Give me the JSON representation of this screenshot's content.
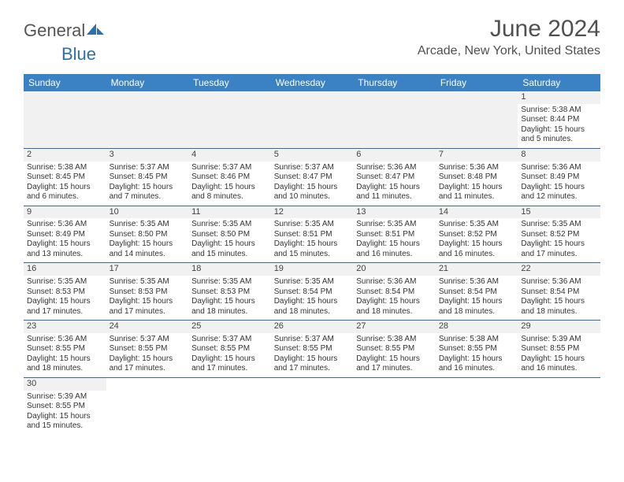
{
  "logo": {
    "general": "General",
    "blue": "Blue"
  },
  "title": "June 2024",
  "location": "Arcade, New York, United States",
  "colors": {
    "header_bg": "#3b82c4",
    "header_text": "#ffffff",
    "daynum_bg": "#f1f1f1",
    "row_border": "#2f6fa7",
    "text": "#333333",
    "title_text": "#505050",
    "logo_blue": "#2f6fa7"
  },
  "day_headers": [
    "Sunday",
    "Monday",
    "Tuesday",
    "Wednesday",
    "Thursday",
    "Friday",
    "Saturday"
  ],
  "weeks": [
    [
      null,
      null,
      null,
      null,
      null,
      null,
      {
        "n": "1",
        "sr": "Sunrise: 5:38 AM",
        "ss": "Sunset: 8:44 PM",
        "d1": "Daylight: 15 hours",
        "d2": "and 5 minutes."
      }
    ],
    [
      {
        "n": "2",
        "sr": "Sunrise: 5:38 AM",
        "ss": "Sunset: 8:45 PM",
        "d1": "Daylight: 15 hours",
        "d2": "and 6 minutes."
      },
      {
        "n": "3",
        "sr": "Sunrise: 5:37 AM",
        "ss": "Sunset: 8:45 PM",
        "d1": "Daylight: 15 hours",
        "d2": "and 7 minutes."
      },
      {
        "n": "4",
        "sr": "Sunrise: 5:37 AM",
        "ss": "Sunset: 8:46 PM",
        "d1": "Daylight: 15 hours",
        "d2": "and 8 minutes."
      },
      {
        "n": "5",
        "sr": "Sunrise: 5:37 AM",
        "ss": "Sunset: 8:47 PM",
        "d1": "Daylight: 15 hours",
        "d2": "and 10 minutes."
      },
      {
        "n": "6",
        "sr": "Sunrise: 5:36 AM",
        "ss": "Sunset: 8:47 PM",
        "d1": "Daylight: 15 hours",
        "d2": "and 11 minutes."
      },
      {
        "n": "7",
        "sr": "Sunrise: 5:36 AM",
        "ss": "Sunset: 8:48 PM",
        "d1": "Daylight: 15 hours",
        "d2": "and 11 minutes."
      },
      {
        "n": "8",
        "sr": "Sunrise: 5:36 AM",
        "ss": "Sunset: 8:49 PM",
        "d1": "Daylight: 15 hours",
        "d2": "and 12 minutes."
      }
    ],
    [
      {
        "n": "9",
        "sr": "Sunrise: 5:36 AM",
        "ss": "Sunset: 8:49 PM",
        "d1": "Daylight: 15 hours",
        "d2": "and 13 minutes."
      },
      {
        "n": "10",
        "sr": "Sunrise: 5:35 AM",
        "ss": "Sunset: 8:50 PM",
        "d1": "Daylight: 15 hours",
        "d2": "and 14 minutes."
      },
      {
        "n": "11",
        "sr": "Sunrise: 5:35 AM",
        "ss": "Sunset: 8:50 PM",
        "d1": "Daylight: 15 hours",
        "d2": "and 15 minutes."
      },
      {
        "n": "12",
        "sr": "Sunrise: 5:35 AM",
        "ss": "Sunset: 8:51 PM",
        "d1": "Daylight: 15 hours",
        "d2": "and 15 minutes."
      },
      {
        "n": "13",
        "sr": "Sunrise: 5:35 AM",
        "ss": "Sunset: 8:51 PM",
        "d1": "Daylight: 15 hours",
        "d2": "and 16 minutes."
      },
      {
        "n": "14",
        "sr": "Sunrise: 5:35 AM",
        "ss": "Sunset: 8:52 PM",
        "d1": "Daylight: 15 hours",
        "d2": "and 16 minutes."
      },
      {
        "n": "15",
        "sr": "Sunrise: 5:35 AM",
        "ss": "Sunset: 8:52 PM",
        "d1": "Daylight: 15 hours",
        "d2": "and 17 minutes."
      }
    ],
    [
      {
        "n": "16",
        "sr": "Sunrise: 5:35 AM",
        "ss": "Sunset: 8:53 PM",
        "d1": "Daylight: 15 hours",
        "d2": "and 17 minutes."
      },
      {
        "n": "17",
        "sr": "Sunrise: 5:35 AM",
        "ss": "Sunset: 8:53 PM",
        "d1": "Daylight: 15 hours",
        "d2": "and 17 minutes."
      },
      {
        "n": "18",
        "sr": "Sunrise: 5:35 AM",
        "ss": "Sunset: 8:53 PM",
        "d1": "Daylight: 15 hours",
        "d2": "and 18 minutes."
      },
      {
        "n": "19",
        "sr": "Sunrise: 5:35 AM",
        "ss": "Sunset: 8:54 PM",
        "d1": "Daylight: 15 hours",
        "d2": "and 18 minutes."
      },
      {
        "n": "20",
        "sr": "Sunrise: 5:36 AM",
        "ss": "Sunset: 8:54 PM",
        "d1": "Daylight: 15 hours",
        "d2": "and 18 minutes."
      },
      {
        "n": "21",
        "sr": "Sunrise: 5:36 AM",
        "ss": "Sunset: 8:54 PM",
        "d1": "Daylight: 15 hours",
        "d2": "and 18 minutes."
      },
      {
        "n": "22",
        "sr": "Sunrise: 5:36 AM",
        "ss": "Sunset: 8:54 PM",
        "d1": "Daylight: 15 hours",
        "d2": "and 18 minutes."
      }
    ],
    [
      {
        "n": "23",
        "sr": "Sunrise: 5:36 AM",
        "ss": "Sunset: 8:55 PM",
        "d1": "Daylight: 15 hours",
        "d2": "and 18 minutes."
      },
      {
        "n": "24",
        "sr": "Sunrise: 5:37 AM",
        "ss": "Sunset: 8:55 PM",
        "d1": "Daylight: 15 hours",
        "d2": "and 17 minutes."
      },
      {
        "n": "25",
        "sr": "Sunrise: 5:37 AM",
        "ss": "Sunset: 8:55 PM",
        "d1": "Daylight: 15 hours",
        "d2": "and 17 minutes."
      },
      {
        "n": "26",
        "sr": "Sunrise: 5:37 AM",
        "ss": "Sunset: 8:55 PM",
        "d1": "Daylight: 15 hours",
        "d2": "and 17 minutes."
      },
      {
        "n": "27",
        "sr": "Sunrise: 5:38 AM",
        "ss": "Sunset: 8:55 PM",
        "d1": "Daylight: 15 hours",
        "d2": "and 17 minutes."
      },
      {
        "n": "28",
        "sr": "Sunrise: 5:38 AM",
        "ss": "Sunset: 8:55 PM",
        "d1": "Daylight: 15 hours",
        "d2": "and 16 minutes."
      },
      {
        "n": "29",
        "sr": "Sunrise: 5:39 AM",
        "ss": "Sunset: 8:55 PM",
        "d1": "Daylight: 15 hours",
        "d2": "and 16 minutes."
      }
    ],
    [
      {
        "n": "30",
        "sr": "Sunrise: 5:39 AM",
        "ss": "Sunset: 8:55 PM",
        "d1": "Daylight: 15 hours",
        "d2": "and 15 minutes."
      },
      null,
      null,
      null,
      null,
      null,
      null
    ]
  ]
}
